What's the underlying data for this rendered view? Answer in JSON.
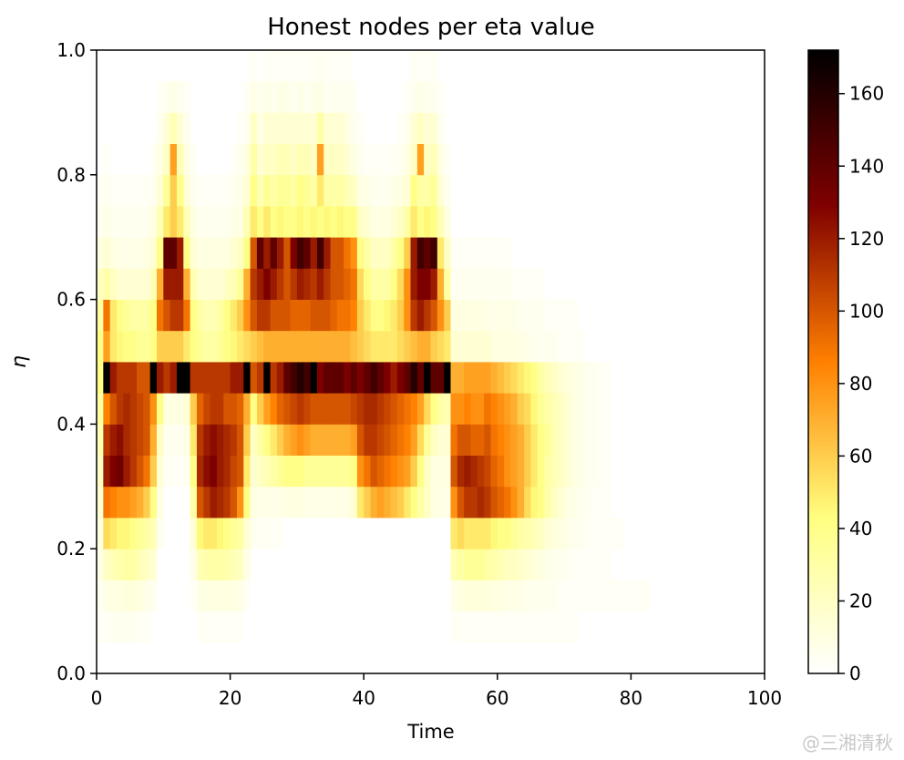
{
  "chart_data": {
    "type": "heatmap",
    "title": "Honest nodes per eta value",
    "xlabel": "Time",
    "ylabel": "η",
    "xlim": [
      0,
      100
    ],
    "ylim": [
      0,
      1
    ],
    "x_ticks": [
      "0",
      "20",
      "40",
      "60",
      "80",
      "100"
    ],
    "y_ticks": [
      "0.0",
      "0.2",
      "0.4",
      "0.6",
      "0.8",
      "1.0"
    ],
    "colorbar": {
      "min": 0,
      "max": 172,
      "ticks": [
        "0",
        "20",
        "40",
        "60",
        "80",
        "100",
        "120",
        "140",
        "160"
      ],
      "colormap": "afmhot_r"
    },
    "bin_width_x": 1,
    "bin_height_y": 0.05,
    "note_cells": "row index r covers eta in [r*0.05, (r+1)*0.05); each row lists values per time bin starting at x=0",
    "rows": [
      {
        "eta_bin": 1,
        "values": [
          3,
          3,
          5,
          5,
          5,
          5,
          3,
          3,
          0,
          0,
          0,
          0,
          0,
          0,
          0,
          3,
          3,
          3,
          3,
          3,
          3,
          3,
          0,
          0,
          0,
          0,
          0,
          0,
          0,
          0,
          0,
          0,
          0,
          0,
          0,
          0,
          0,
          0,
          0,
          0,
          0,
          0,
          0,
          0,
          0,
          0,
          0,
          0,
          0,
          0,
          0,
          0,
          0,
          3,
          3,
          3,
          3,
          3,
          3,
          3,
          3,
          3,
          3,
          3,
          3,
          3,
          3,
          3,
          3,
          3,
          3,
          3
        ]
      },
      {
        "eta_bin": 2,
        "values": [
          5,
          8,
          10,
          10,
          12,
          12,
          10,
          8,
          5,
          0,
          0,
          0,
          0,
          0,
          3,
          8,
          10,
          10,
          10,
          10,
          10,
          8,
          3,
          0,
          0,
          0,
          0,
          0,
          0,
          0,
          0,
          0,
          0,
          0,
          0,
          0,
          0,
          0,
          0,
          0,
          0,
          0,
          0,
          0,
          0,
          0,
          0,
          0,
          0,
          0,
          0,
          0,
          0,
          8,
          10,
          12,
          12,
          12,
          12,
          10,
          10,
          8,
          8,
          8,
          6,
          6,
          5,
          5,
          5,
          3,
          3,
          3,
          3,
          3,
          3,
          3,
          3,
          3,
          3,
          3,
          3,
          3,
          3
        ]
      },
      {
        "eta_bin": 3,
        "values": [
          8,
          20,
          25,
          28,
          30,
          30,
          25,
          20,
          15,
          0,
          0,
          0,
          0,
          0,
          8,
          25,
          28,
          30,
          30,
          28,
          25,
          20,
          8,
          0,
          0,
          0,
          0,
          0,
          0,
          0,
          0,
          0,
          0,
          0,
          0,
          0,
          0,
          0,
          0,
          0,
          0,
          0,
          0,
          0,
          0,
          0,
          0,
          0,
          0,
          0,
          0,
          0,
          0,
          25,
          30,
          35,
          35,
          35,
          30,
          28,
          25,
          22,
          20,
          18,
          15,
          12,
          10,
          8,
          6,
          5,
          5,
          3,
          3,
          3,
          3,
          3,
          3
        ]
      },
      {
        "eta_bin": 4,
        "values": [
          10,
          55,
          50,
          45,
          45,
          40,
          35,
          30,
          25,
          5,
          0,
          0,
          0,
          0,
          15,
          45,
          50,
          50,
          45,
          40,
          35,
          30,
          15,
          5,
          3,
          3,
          3,
          3,
          0,
          0,
          0,
          0,
          0,
          0,
          0,
          0,
          0,
          0,
          0,
          0,
          0,
          0,
          0,
          0,
          0,
          0,
          0,
          0,
          0,
          0,
          0,
          0,
          0,
          50,
          55,
          50,
          50,
          50,
          50,
          45,
          40,
          40,
          35,
          30,
          28,
          25,
          20,
          15,
          12,
          10,
          8,
          5,
          5,
          3,
          3,
          3,
          3,
          3,
          3
        ]
      },
      {
        "eta_bin": 5,
        "values": [
          15,
          90,
          85,
          80,
          80,
          75,
          70,
          60,
          40,
          10,
          0,
          0,
          0,
          0,
          30,
          100,
          110,
          120,
          115,
          110,
          100,
          80,
          40,
          10,
          8,
          8,
          8,
          8,
          10,
          10,
          10,
          8,
          8,
          8,
          8,
          8,
          8,
          8,
          15,
          50,
          60,
          70,
          75,
          70,
          65,
          60,
          50,
          40,
          30,
          20,
          10,
          8,
          8,
          80,
          100,
          110,
          110,
          115,
          110,
          100,
          95,
          90,
          80,
          70,
          55,
          45,
          40,
          30,
          20,
          15,
          10,
          8,
          5,
          5,
          3,
          3,
          3
        ]
      },
      {
        "eta_bin": 6,
        "values": [
          20,
          120,
          130,
          135,
          120,
          110,
          100,
          90,
          60,
          15,
          3,
          3,
          3,
          5,
          40,
          115,
          125,
          130,
          120,
          115,
          105,
          100,
          50,
          15,
          20,
          25,
          30,
          35,
          40,
          40,
          40,
          35,
          35,
          35,
          35,
          35,
          35,
          35,
          40,
          80,
          90,
          100,
          95,
          90,
          85,
          80,
          75,
          60,
          40,
          20,
          10,
          10,
          10,
          100,
          115,
          120,
          115,
          110,
          105,
          95,
          90,
          80,
          75,
          70,
          60,
          50,
          40,
          30,
          25,
          20,
          15,
          10,
          8,
          5,
          5,
          3,
          3
        ]
      },
      {
        "eta_bin": 7,
        "values": [
          25,
          110,
          120,
          125,
          115,
          110,
          105,
          100,
          70,
          20,
          5,
          5,
          5,
          8,
          50,
          110,
          120,
          125,
          120,
          115,
          110,
          100,
          60,
          20,
          30,
          40,
          50,
          60,
          70,
          75,
          80,
          75,
          70,
          70,
          70,
          70,
          70,
          70,
          75,
          100,
          110,
          110,
          105,
          100,
          95,
          90,
          85,
          75,
          55,
          35,
          20,
          15,
          15,
          90,
          100,
          100,
          95,
          95,
          100,
          90,
          85,
          80,
          75,
          70,
          60,
          50,
          40,
          35,
          25,
          20,
          15,
          10,
          8,
          5,
          5,
          3,
          3
        ]
      },
      {
        "eta_bin": 8,
        "values": [
          30,
          85,
          100,
          110,
          115,
          110,
          105,
          100,
          80,
          40,
          10,
          10,
          10,
          15,
          60,
          95,
          105,
          110,
          110,
          100,
          100,
          95,
          70,
          40,
          60,
          75,
          85,
          95,
          100,
          105,
          110,
          105,
          100,
          100,
          100,
          100,
          100,
          100,
          105,
          110,
          115,
          115,
          110,
          105,
          100,
          95,
          90,
          85,
          75,
          55,
          40,
          30,
          25,
          80,
          80,
          85,
          80,
          80,
          90,
          85,
          80,
          75,
          70,
          60,
          55,
          45,
          35,
          30,
          25,
          20,
          15,
          10,
          8,
          5,
          5,
          3,
          3
        ]
      },
      {
        "eta_bin": 9,
        "values": [
          40,
          172,
          120,
          110,
          110,
          110,
          100,
          100,
          172,
          120,
          110,
          120,
          172,
          172,
          110,
          110,
          110,
          110,
          110,
          110,
          120,
          120,
          172,
          100,
          110,
          172,
          110,
          120,
          140,
          150,
          160,
          150,
          172,
          130,
          140,
          140,
          140,
          130,
          140,
          130,
          140,
          150,
          140,
          130,
          120,
          130,
          140,
          160,
          140,
          172,
          140,
          140,
          172,
          70,
          70,
          75,
          75,
          75,
          75,
          70,
          65,
          60,
          55,
          50,
          45,
          40,
          30,
          25,
          20,
          15,
          12,
          10,
          8,
          5,
          5,
          3,
          3
        ]
      },
      {
        "eta_bin": 10,
        "values": [
          40,
          75,
          50,
          45,
          40,
          40,
          35,
          35,
          40,
          60,
          60,
          60,
          60,
          50,
          40,
          35,
          30,
          30,
          35,
          40,
          45,
          50,
          55,
          60,
          65,
          70,
          70,
          70,
          70,
          70,
          70,
          70,
          70,
          70,
          70,
          70,
          70,
          70,
          65,
          60,
          55,
          50,
          50,
          50,
          50,
          55,
          60,
          65,
          70,
          70,
          60,
          55,
          50,
          15,
          15,
          15,
          15,
          15,
          15,
          10,
          10,
          10,
          10,
          8,
          8,
          5,
          5,
          5,
          5,
          3,
          3,
          3,
          3
        ]
      },
      {
        "eta_bin": 11,
        "values": [
          30,
          90,
          50,
          40,
          35,
          30,
          30,
          30,
          40,
          90,
          100,
          110,
          110,
          90,
          40,
          30,
          25,
          25,
          30,
          40,
          50,
          60,
          80,
          100,
          110,
          110,
          100,
          100,
          100,
          95,
          95,
          95,
          100,
          100,
          100,
          95,
          90,
          90,
          85,
          60,
          50,
          40,
          40,
          45,
          50,
          60,
          80,
          110,
          120,
          110,
          100,
          80,
          60,
          10,
          10,
          10,
          10,
          10,
          8,
          8,
          8,
          8,
          8,
          5,
          5,
          5,
          5,
          3,
          3,
          3,
          3,
          3
        ]
      },
      {
        "eta_bin": 12,
        "values": [
          20,
          30,
          20,
          15,
          15,
          15,
          15,
          15,
          25,
          70,
          120,
          120,
          120,
          70,
          25,
          15,
          15,
          15,
          15,
          20,
          25,
          35,
          70,
          110,
          120,
          130,
          120,
          110,
          100,
          110,
          120,
          115,
          110,
          120,
          110,
          100,
          100,
          95,
          90,
          55,
          40,
          30,
          30,
          30,
          40,
          55,
          80,
          120,
          130,
          130,
          120,
          70,
          30,
          5,
          5,
          5,
          5,
          5,
          5,
          5,
          5,
          5,
          3,
          3,
          3,
          3,
          3
        ]
      },
      {
        "eta_bin": 13,
        "values": [
          10,
          15,
          10,
          8,
          8,
          8,
          8,
          10,
          15,
          40,
          140,
          140,
          120,
          40,
          15,
          10,
          10,
          10,
          10,
          10,
          15,
          20,
          40,
          100,
          140,
          120,
          140,
          120,
          100,
          130,
          150,
          140,
          120,
          150,
          120,
          100,
          100,
          90,
          80,
          40,
          30,
          20,
          20,
          20,
          30,
          40,
          60,
          120,
          150,
          140,
          150,
          50,
          20,
          3,
          3,
          3,
          3,
          3,
          3,
          3,
          3,
          3
        ]
      },
      {
        "eta_bin": 14,
        "values": [
          5,
          8,
          5,
          5,
          5,
          5,
          5,
          5,
          10,
          25,
          50,
          60,
          50,
          25,
          10,
          5,
          5,
          5,
          5,
          5,
          8,
          10,
          25,
          50,
          40,
          50,
          40,
          45,
          40,
          40,
          45,
          40,
          45,
          40,
          45,
          40,
          45,
          40,
          40,
          20,
          15,
          10,
          10,
          10,
          15,
          20,
          30,
          50,
          40,
          45,
          40,
          25,
          10
        ]
      },
      {
        "eta_bin": 15,
        "values": [
          3,
          5,
          3,
          3,
          3,
          3,
          3,
          3,
          5,
          15,
          35,
          60,
          40,
          15,
          5,
          3,
          3,
          3,
          3,
          3,
          5,
          8,
          15,
          40,
          25,
          35,
          30,
          35,
          35,
          30,
          40,
          35,
          30,
          50,
          30,
          30,
          30,
          25,
          20,
          10,
          8,
          5,
          5,
          5,
          8,
          10,
          15,
          40,
          30,
          30,
          35,
          15,
          5
        ]
      },
      {
        "eta_bin": 16,
        "values": [
          0,
          3,
          0,
          0,
          0,
          0,
          0,
          0,
          3,
          10,
          20,
          75,
          25,
          10,
          3,
          0,
          0,
          0,
          0,
          0,
          3,
          5,
          10,
          30,
          15,
          20,
          20,
          25,
          25,
          20,
          25,
          25,
          20,
          75,
          20,
          20,
          20,
          15,
          10,
          5,
          3,
          3,
          3,
          3,
          3,
          5,
          10,
          20,
          75,
          20,
          25,
          10,
          3
        ]
      },
      {
        "eta_bin": 17,
        "values": [
          0,
          0,
          0,
          0,
          0,
          0,
          0,
          0,
          0,
          5,
          15,
          25,
          15,
          5,
          0,
          0,
          0,
          0,
          0,
          0,
          0,
          3,
          5,
          20,
          10,
          15,
          15,
          15,
          15,
          15,
          15,
          15,
          15,
          30,
          15,
          15,
          15,
          10,
          5,
          3,
          0,
          0,
          0,
          0,
          0,
          3,
          5,
          15,
          20,
          15,
          15,
          5
        ]
      },
      {
        "eta_bin": 18,
        "values": [
          0,
          0,
          0,
          0,
          0,
          0,
          0,
          0,
          0,
          3,
          5,
          8,
          5,
          3,
          0,
          0,
          0,
          0,
          0,
          0,
          0,
          0,
          3,
          8,
          5,
          8,
          5,
          8,
          8,
          5,
          8,
          5,
          8,
          8,
          5,
          5,
          5,
          5,
          3,
          0,
          0,
          0,
          0,
          0,
          0,
          0,
          3,
          5,
          8,
          5,
          5,
          3
        ]
      },
      {
        "eta_bin": 19,
        "values": [
          0,
          0,
          0,
          0,
          0,
          0,
          0,
          0,
          0,
          0,
          0,
          0,
          0,
          0,
          0,
          0,
          0,
          0,
          0,
          0,
          0,
          0,
          0,
          3,
          0,
          3,
          3,
          3,
          3,
          3,
          3,
          3,
          3,
          5,
          3,
          3,
          3,
          3,
          0,
          0,
          0,
          0,
          0,
          0,
          0,
          0,
          0,
          3,
          3,
          3,
          3
        ]
      }
    ]
  },
  "watermark": "@三湘清秋"
}
